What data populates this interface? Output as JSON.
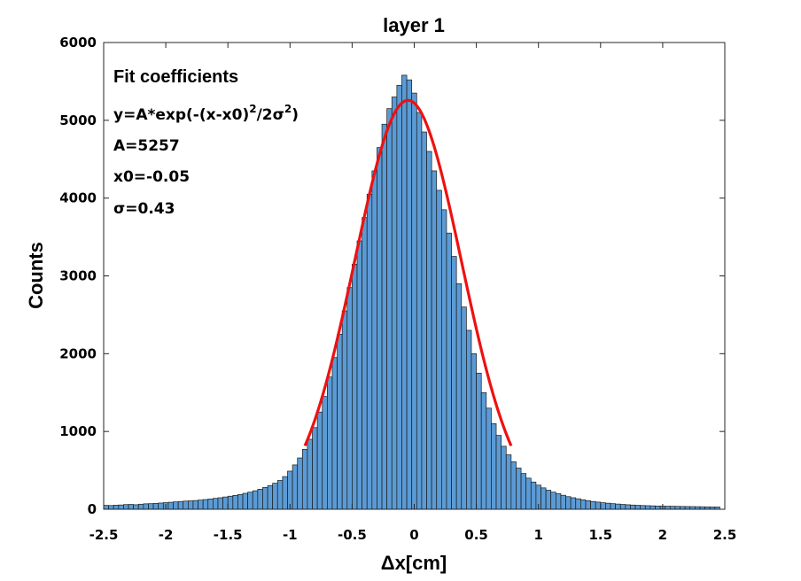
{
  "chart_data": {
    "type": "bar",
    "title": "layer 1",
    "xlabel": "Δx[cm]",
    "ylabel": "Counts",
    "xlim": [
      -2.5,
      2.5
    ],
    "ylim": [
      0,
      6000
    ],
    "xticks": [
      "-2.5",
      "-2",
      "-1.5",
      "-1",
      "-0.5",
      "0",
      "0.5",
      "1",
      "1.5",
      "2",
      "2.5"
    ],
    "yticks": [
      "0",
      "1000",
      "2000",
      "3000",
      "4000",
      "5000",
      "6000"
    ],
    "bin_width": 0.04,
    "bin_start": -2.5,
    "counts": [
      50,
      48,
      52,
      55,
      60,
      62,
      58,
      65,
      70,
      72,
      75,
      80,
      85,
      90,
      95,
      100,
      105,
      108,
      112,
      118,
      125,
      132,
      140,
      148,
      158,
      168,
      178,
      190,
      205,
      220,
      238,
      258,
      280,
      305,
      335,
      370,
      420,
      490,
      570,
      660,
      770,
      900,
      1050,
      1250,
      1450,
      1700,
      1950,
      2250,
      2550,
      2850,
      3150,
      3450,
      3750,
      4050,
      4350,
      4650,
      4950,
      5150,
      5300,
      5450,
      5580,
      5520,
      5350,
      5100,
      4850,
      4600,
      4350,
      4100,
      3850,
      3550,
      3250,
      2900,
      2600,
      2300,
      2000,
      1750,
      1500,
      1300,
      1100,
      950,
      810,
      700,
      610,
      530,
      460,
      400,
      350,
      310,
      275,
      245,
      220,
      200,
      180,
      162,
      148,
      135,
      122,
      110,
      100,
      92,
      84,
      78,
      72,
      67,
      62,
      58,
      54,
      51,
      48,
      46,
      44,
      42,
      40,
      39,
      38,
      37,
      36,
      35,
      34,
      33,
      32,
      31,
      30,
      30
    ],
    "fit": {
      "A": 5257,
      "x0": -0.05,
      "sigma": 0.43,
      "range": [
        -0.88,
        0.78
      ]
    },
    "bar_color": "#5b9bd5",
    "fit_color": "#ee1111",
    "grid": false
  },
  "annotation": {
    "heading": "Fit coefficients",
    "formula_main": "y=A*exp(-(x-x0)",
    "formula_sup1": "2",
    "formula_mid": "/2σ",
    "formula_sup2": "2",
    "formula_end": ")",
    "a_line": "A=5257",
    "x0_line": "x0=-0.05",
    "sigma_line": "σ=0.43"
  }
}
